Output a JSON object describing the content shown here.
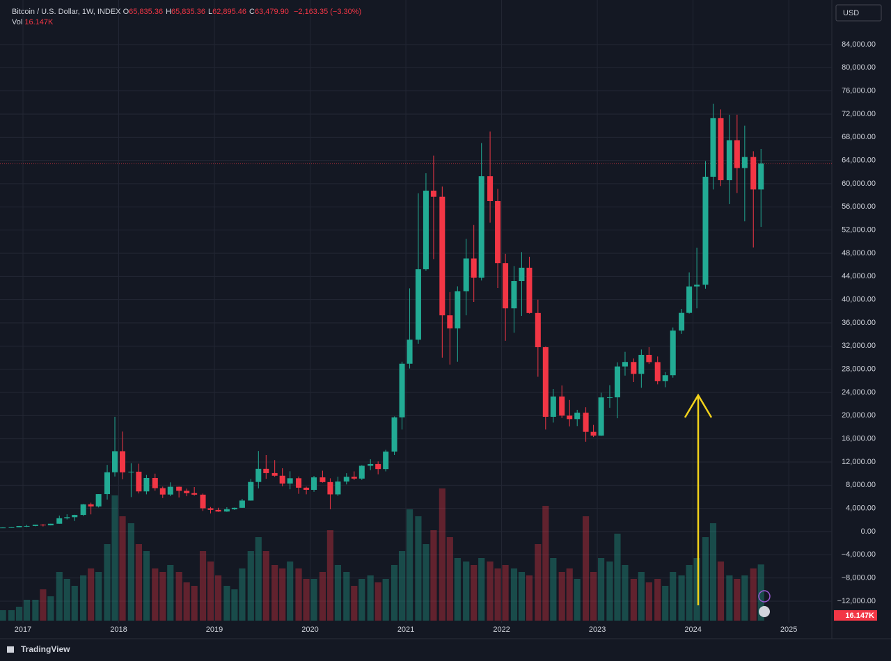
{
  "header": {
    "symbol": "Bitcoin / U.S. Dollar, 1W, INDEX",
    "ohlc": [
      {
        "key": "O",
        "value": "65,835.36"
      },
      {
        "key": "H",
        "value": "65,835.36"
      },
      {
        "key": "L",
        "value": "62,895.46"
      },
      {
        "key": "C",
        "value": "63,479.90"
      }
    ],
    "change": "−2,163.35 (−3.30%)",
    "volume_key": "Vol",
    "volume_value": "16.147K"
  },
  "currency": "USD",
  "brand": "TradingView",
  "chart_data": {
    "type": "candlestick",
    "x": [
      2016.79,
      2016.88,
      2016.96,
      2017.04,
      2017.13,
      2017.21,
      2017.29,
      2017.38,
      2017.46,
      2017.54,
      2017.63,
      2017.71,
      2017.79,
      2017.88,
      2017.96,
      2018.04,
      2018.13,
      2018.21,
      2018.29,
      2018.38,
      2018.46,
      2018.54,
      2018.63,
      2018.71,
      2018.79,
      2018.88,
      2018.96,
      2019.04,
      2019.13,
      2019.21,
      2019.29,
      2019.38,
      2019.46,
      2019.54,
      2019.63,
      2019.71,
      2019.79,
      2019.88,
      2019.96,
      2020.04,
      2020.13,
      2020.21,
      2020.29,
      2020.38,
      2020.46,
      2020.54,
      2020.63,
      2020.71,
      2020.79,
      2020.88,
      2020.96,
      2021.04,
      2021.13,
      2021.21,
      2021.29,
      2021.38,
      2021.46,
      2021.54,
      2021.63,
      2021.71,
      2021.79,
      2021.88,
      2021.96,
      2022.04,
      2022.13,
      2022.21,
      2022.29,
      2022.38,
      2022.46,
      2022.54,
      2022.63,
      2022.71,
      2022.79,
      2022.88,
      2022.96,
      2023.04,
      2023.13,
      2023.21,
      2023.29,
      2023.38,
      2023.46,
      2023.54,
      2023.63,
      2023.71,
      2023.79,
      2023.88,
      2023.96,
      2024.04,
      2024.13,
      2024.21,
      2024.29,
      2024.38,
      2024.46,
      2024.54,
      2024.63,
      2024.71
    ],
    "open": [
      610,
      700,
      745,
      965,
      970,
      1190,
      1080,
      1350,
      2300,
      2480,
      2870,
      4700,
      4340,
      6470,
      10230,
      13860,
      10220,
      10330,
      6930,
      9240,
      7490,
      6390,
      7730,
      7030,
      6630,
      6370,
      4020,
      3740,
      3460,
      3850,
      4100,
      5350,
      8560,
      10820,
      10090,
      9630,
      8290,
      9200,
      7570,
      7200,
      9350,
      8540,
      6420,
      8630,
      9450,
      9140,
      11350,
      11650,
      10780,
      13800,
      19700,
      28950,
      33100,
      45240,
      58800,
      57750,
      37300,
      35040,
      41460,
      47100,
      43800,
      61300,
      57000,
      46300,
      38500,
      43200,
      45500,
      37700,
      31800,
      19800,
      23300,
      20000,
      19400,
      20500,
      17200,
      16550,
      23140,
      23150,
      28480,
      29250,
      27200,
      30480,
      29230,
      25940,
      26970,
      34670,
      37720,
      42280,
      42580,
      61200,
      71300,
      60600,
      67500,
      62700,
      64600,
      59000
    ],
    "high": [
      740,
      755,
      970,
      1150,
      1200,
      1290,
      1350,
      2760,
      2980,
      2900,
      4760,
      4980,
      6470,
      11500,
      19800,
      17250,
      11790,
      11700,
      9760,
      9990,
      7760,
      8490,
      7760,
      7410,
      7680,
      6560,
      4240,
      4110,
      4200,
      4140,
      5640,
      9070,
      13900,
      13200,
      12330,
      10920,
      10400,
      9500,
      7750,
      9600,
      10500,
      9190,
      9460,
      10070,
      10380,
      11450,
      12470,
      12100,
      14100,
      19860,
      29300,
      41950,
      58350,
      61800,
      64850,
      59500,
      41300,
      42300,
      50500,
      52900,
      67000,
      69000,
      59100,
      47900,
      45800,
      48200,
      47400,
      40000,
      31900,
      24600,
      25200,
      22700,
      21000,
      21450,
      18400,
      23950,
      25250,
      29200,
      31000,
      29850,
      31400,
      31800,
      30200,
      27500,
      35200,
      38400,
      44700,
      48970,
      63900,
      73800,
      72800,
      71900,
      71900,
      70000,
      65600,
      66000
    ],
    "low": [
      605,
      690,
      745,
      780,
      920,
      890,
      1060,
      1350,
      2100,
      1830,
      2700,
      2970,
      4160,
      5520,
      9500,
      9030,
      5950,
      6580,
      6430,
      7050,
      5790,
      6110,
      5880,
      6110,
      6200,
      3560,
      3130,
      3400,
      3400,
      3730,
      4100,
      5330,
      7450,
      9100,
      9460,
      7800,
      7300,
      6520,
      6430,
      6860,
      8450,
      3850,
      6160,
      8130,
      8900,
      8900,
      10600,
      9880,
      10380,
      13200,
      17600,
      28130,
      32400,
      45000,
      47000,
      30000,
      28800,
      29300,
      37300,
      39600,
      43300,
      53300,
      42000,
      32900,
      34300,
      37200,
      37600,
      26700,
      17600,
      18800,
      19600,
      18150,
      18200,
      15500,
      16300,
      16500,
      21350,
      19550,
      26900,
      25800,
      24800,
      28900,
      25400,
      24900,
      26550,
      34100,
      37600,
      38500,
      41900,
      59000,
      59600,
      56500,
      58400,
      53500,
      49000,
      52550
    ],
    "close": [
      700,
      745,
      965,
      970,
      1190,
      1080,
      1350,
      2300,
      2480,
      2870,
      4700,
      4340,
      6470,
      10230,
      13860,
      10220,
      10330,
      6930,
      9240,
      7490,
      6390,
      7730,
      7030,
      6630,
      6370,
      4020,
      3740,
      3460,
      3850,
      4100,
      5350,
      8560,
      10820,
      10090,
      9630,
      8290,
      9200,
      7570,
      7200,
      9350,
      8540,
      6420,
      8630,
      9450,
      9140,
      11350,
      11650,
      10780,
      13800,
      19700,
      28950,
      33100,
      45240,
      58800,
      57750,
      37300,
      35040,
      41460,
      47100,
      43800,
      61300,
      57000,
      46300,
      38500,
      43200,
      45500,
      37700,
      31800,
      19800,
      23300,
      20000,
      19400,
      20500,
      17200,
      16550,
      23140,
      23150,
      28480,
      29250,
      27200,
      30480,
      29230,
      25940,
      26970,
      34670,
      37720,
      42280,
      42580,
      61200,
      71300,
      60600,
      67500,
      62700,
      64600,
      59000,
      63479.9
    ],
    "volume": [
      3,
      3,
      4,
      6,
      6,
      9,
      7,
      14,
      12,
      10,
      13,
      15,
      14,
      22,
      36,
      30,
      28,
      22,
      20,
      15,
      14,
      16,
      14,
      11,
      10,
      20,
      17,
      13,
      10,
      9,
      15,
      20,
      24,
      20,
      16,
      15,
      17,
      15,
      12,
      12,
      14,
      26,
      16,
      14,
      10,
      12,
      13,
      11,
      12,
      16,
      20,
      32,
      30,
      22,
      26,
      38,
      24,
      18,
      17,
      16,
      18,
      17,
      15,
      16,
      15,
      14,
      13,
      22,
      33,
      18,
      14,
      15,
      12,
      30,
      14,
      18,
      17,
      25,
      16,
      12,
      14,
      11,
      12,
      10,
      14,
      13,
      16,
      18,
      24,
      28,
      17,
      13,
      12,
      13,
      15,
      16.147
    ],
    "volume_label": "16.147K",
    "up_color": "#22ab94",
    "down_color": "#f23645",
    "last_price": 63479.9,
    "xlim": [
      2016.76,
      2025.45
    ],
    "xticks": [
      2017,
      2018,
      2019,
      2020,
      2021,
      2022,
      2023,
      2024,
      2025
    ],
    "ylim": [
      -15360,
      91680
    ],
    "yticks": [
      {
        "value": -12000,
        "label": "−12,000.00"
      },
      {
        "value": -8000,
        "label": "−8,000.00"
      },
      {
        "value": -4000,
        "label": "−4,000.00"
      },
      {
        "value": 0,
        "label": "0.00"
      },
      {
        "value": 4000,
        "label": "4,000.00"
      },
      {
        "value": 8000,
        "label": "8,000.00"
      },
      {
        "value": 12000,
        "label": "12,000.00"
      },
      {
        "value": 16000,
        "label": "16,000.00"
      },
      {
        "value": 20000,
        "label": "20,000.00"
      },
      {
        "value": 24000,
        "label": "24,000.00"
      },
      {
        "value": 28000,
        "label": "28,000.00"
      },
      {
        "value": 32000,
        "label": "32,000.00"
      },
      {
        "value": 36000,
        "label": "36,000.00"
      },
      {
        "value": 40000,
        "label": "40,000.00"
      },
      {
        "value": 44000,
        "label": "44,000.00"
      },
      {
        "value": 48000,
        "label": "48,000.00"
      },
      {
        "value": 52000,
        "label": "52,000.00"
      },
      {
        "value": 56000,
        "label": "56,000.00"
      },
      {
        "value": 60000,
        "label": "60,000.00"
      },
      {
        "value": 64000,
        "label": "64,000.00"
      },
      {
        "value": 68000,
        "label": "68,000.00"
      },
      {
        "value": 72000,
        "label": "72,000.00"
      },
      {
        "value": 76000,
        "label": "76,000.00"
      },
      {
        "value": 80000,
        "label": "80,000.00"
      },
      {
        "value": 84000,
        "label": "84,000.00"
      }
    ],
    "grid": true
  }
}
